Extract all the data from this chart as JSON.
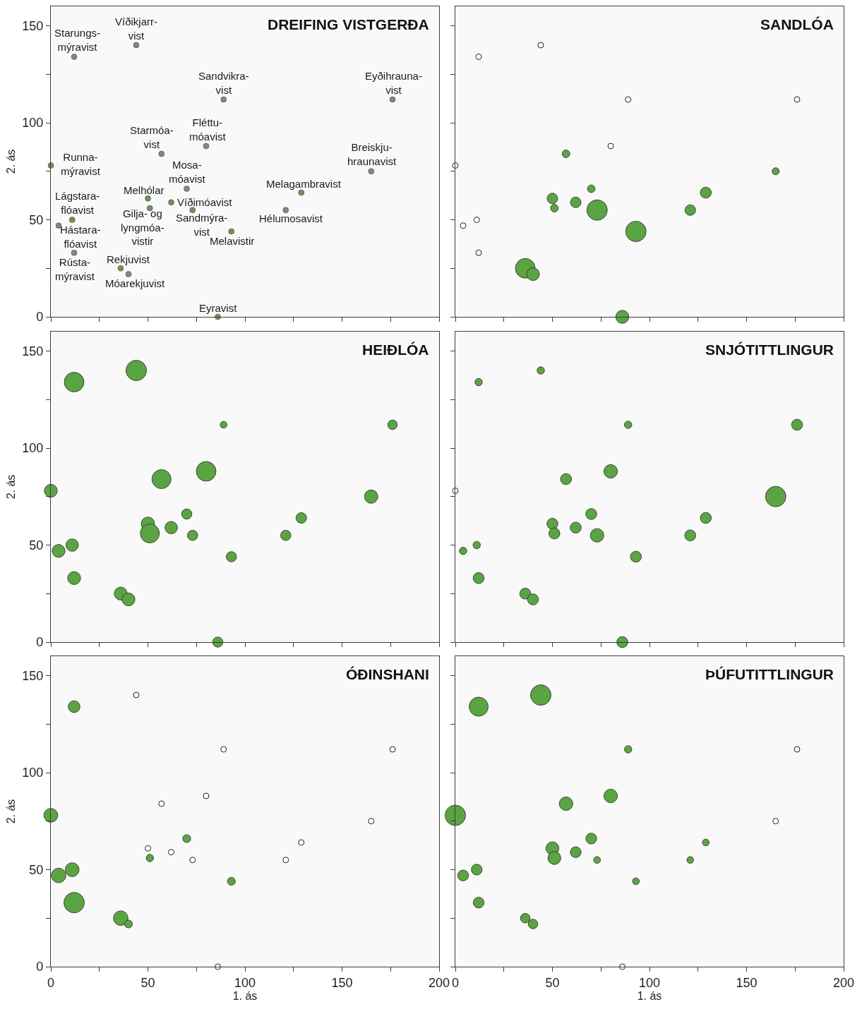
{
  "chart_data": [
    {
      "type": "scatter",
      "title": "DREIFING VISTGERÐA",
      "ylabel": "2. ás",
      "marker": "circle",
      "x": [
        12,
        44,
        89,
        176,
        80,
        57,
        0,
        165,
        70,
        129,
        50,
        62,
        51,
        73,
        121,
        11,
        4,
        93,
        12,
        36,
        40,
        86
      ],
      "values": [
        134,
        140,
        112,
        112,
        88,
        84,
        78,
        75,
        66,
        64,
        61,
        59,
        56,
        55,
        55,
        50,
        47,
        44,
        33,
        25,
        22,
        0
      ],
      "colors": [
        "#858585",
        "#858585",
        "#858585",
        "#858585",
        "#858585",
        "#858585",
        "#71915a",
        "#858585",
        "#858585",
        "#71915a",
        "#71915a",
        "#71915a",
        "#71915a",
        "#71915a",
        "#858585",
        "#71915a",
        "#858585",
        "#71915a",
        "#858585",
        "#71915a",
        "#858585",
        "#71915a"
      ],
      "annotations": [
        {
          "text": "Starungs-\nmýravist",
          "x": 12,
          "y": 134
        },
        {
          "text": "Víðikjarr-\nvist",
          "x": 44,
          "y": 140
        },
        {
          "text": "Sandvikra-\nvist",
          "x": 89,
          "y": 112
        },
        {
          "text": "Eyðihrauna-\nvist",
          "x": 176,
          "y": 112
        },
        {
          "text": "Fléttu-\nmóavist",
          "x": 80,
          "y": 88
        },
        {
          "text": "Starmóa-\nvist",
          "x": 57,
          "y": 84
        },
        {
          "text": "Runna-\nmýravist",
          "x": 0,
          "y": 78
        },
        {
          "text": "Breiskju-\nhraunavist",
          "x": 165,
          "y": 75
        },
        {
          "text": "Mosa-\nmóavist",
          "x": 70,
          "y": 66
        },
        {
          "text": "Melagambravist",
          "x": 129,
          "y": 64
        },
        {
          "text": "Melhólar",
          "x": 50,
          "y": 61
        },
        {
          "text": "Víðimóavist",
          "x": 62,
          "y": 59
        },
        {
          "text": "Gilja- og\nlyngmóa-\nvistir",
          "x": 51,
          "y": 56
        },
        {
          "text": "Sandmýra-\nvist",
          "x": 73,
          "y": 55
        },
        {
          "text": "Hélumosavist",
          "x": 121,
          "y": 55
        },
        {
          "text": "Lágstara-\nflóavist",
          "x": 11,
          "y": 50
        },
        {
          "text": "Hástara-\nflóavist",
          "x": 4,
          "y": 47
        },
        {
          "text": "Melavistir",
          "x": 93,
          "y": 44
        },
        {
          "text": "Rústa-\nmýravist",
          "x": 12,
          "y": 33
        },
        {
          "text": "Rekjuvist",
          "x": 36,
          "y": 25
        },
        {
          "text": "Móarekjuvist",
          "x": 40,
          "y": 22
        },
        {
          "text": "Eyravist",
          "x": 86,
          "y": 0
        }
      ],
      "xlim": [
        0,
        200
      ],
      "ylim": [
        0,
        160
      ],
      "xticks": [
        0,
        {
          "value": 25,
          "label": null
        },
        50,
        {
          "value": 75,
          "label": null
        },
        100,
        {
          "value": 125,
          "label": null
        },
        150,
        {
          "value": 175,
          "label": null
        },
        200
      ],
      "yticks": [
        0,
        {
          "value": 25,
          "label": null
        },
        50,
        {
          "value": 75,
          "label": null
        },
        100,
        {
          "value": 125,
          "label": null
        },
        150
      ],
      "tick_labels": "y"
    },
    {
      "type": "bubble",
      "title": "SANDLÓA",
      "marker": "circle",
      "x": [
        12,
        44,
        89,
        176,
        80,
        57,
        0,
        165,
        70,
        129,
        50,
        62,
        51,
        73,
        121,
        11,
        4,
        93,
        12,
        36,
        40,
        86
      ],
      "series": [
        {
          "type": "bubble",
          "color": "#5ba443",
          "values": [
            null,
            null,
            null,
            null,
            null,
            84,
            null,
            75,
            66,
            64,
            61,
            59,
            56,
            55,
            55,
            null,
            null,
            44,
            null,
            25,
            22,
            0
          ],
          "sizes": [
            null,
            null,
            null,
            null,
            null,
            0.14,
            null,
            0.12,
            0.14,
            0.29,
            0.27,
            0.27,
            0.14,
            1,
            0.27,
            null,
            null,
            1,
            null,
            0.93,
            0.39,
            0.41
          ]
        },
        {
          "type": "scatter",
          "color": "#ffffff",
          "values": [
            134,
            140,
            112,
            112,
            88,
            null,
            78,
            null,
            null,
            null,
            null,
            null,
            null,
            null,
            null,
            50,
            47,
            null,
            33,
            null,
            null,
            null
          ]
        }
      ],
      "xlim": [
        0,
        200
      ],
      "ylim": [
        0,
        160
      ],
      "xticks": [
        0,
        {
          "value": 25,
          "label": null
        },
        50,
        {
          "value": 75,
          "label": null
        },
        100,
        {
          "value": 125,
          "label": null
        },
        150,
        {
          "value": 175,
          "label": null
        },
        200
      ],
      "yticks": [
        0,
        {
          "value": 25,
          "label": null
        },
        50,
        {
          "value": 75,
          "label": null
        },
        100,
        {
          "value": 125,
          "label": null
        },
        150
      ],
      "tick_labels": false
    },
    {
      "type": "bubble",
      "title": "HEIÐLÓA",
      "ylabel": "2. ás",
      "marker": "circle",
      "x": [
        12,
        44,
        89,
        176,
        80,
        57,
        0,
        165,
        70,
        129,
        50,
        62,
        51,
        73,
        121,
        11,
        4,
        93,
        12,
        36,
        40,
        86
      ],
      "series": [
        {
          "type": "bubble",
          "color": "#5ba443",
          "values": [
            134,
            140,
            112,
            112,
            88,
            84,
            78,
            75,
            66,
            64,
            61,
            59,
            56,
            55,
            55,
            50,
            47,
            44,
            33,
            25,
            22,
            0
          ],
          "sizes": [
            0.93,
            1,
            0.11,
            0.22,
            0.93,
            0.87,
            0.4,
            0.43,
            0.25,
            0.27,
            0.43,
            0.37,
            0.87,
            0.25,
            0.25,
            0.37,
            0.4,
            0.25,
            0.4,
            0.4,
            0.4,
            0.25
          ]
        }
      ],
      "xlim": [
        0,
        200
      ],
      "ylim": [
        0,
        160
      ],
      "xticks": [
        0,
        {
          "value": 25,
          "label": null
        },
        50,
        {
          "value": 75,
          "label": null
        },
        100,
        {
          "value": 125,
          "label": null
        },
        150,
        {
          "value": 175,
          "label": null
        },
        200
      ],
      "yticks": [
        0,
        {
          "value": 25,
          "label": null
        },
        50,
        {
          "value": 75,
          "label": null
        },
        100,
        {
          "value": 125,
          "label": null
        },
        150
      ],
      "tick_labels": "y"
    },
    {
      "type": "bubble",
      "title": "SNJÓTITTLINGUR",
      "marker": "circle",
      "x": [
        12,
        44,
        89,
        176,
        80,
        57,
        0,
        165,
        70,
        129,
        50,
        62,
        51,
        73,
        121,
        11,
        4,
        93,
        12,
        36,
        40,
        86
      ],
      "series": [
        {
          "type": "bubble",
          "color": "#5ba443",
          "values": [
            134,
            140,
            112,
            112,
            88,
            84,
            null,
            75,
            66,
            64,
            61,
            59,
            56,
            55,
            55,
            50,
            47,
            44,
            33,
            25,
            22,
            0
          ],
          "sizes": [
            0.13,
            0.13,
            0.13,
            0.29,
            0.44,
            0.29,
            null,
            1,
            0.29,
            0.29,
            0.29,
            0.29,
            0.29,
            0.44,
            0.29,
            0.13,
            0.13,
            0.29,
            0.29,
            0.29,
            0.29,
            0.29
          ]
        },
        {
          "type": "scatter",
          "color": "#ffffff",
          "values": [
            null,
            null,
            null,
            null,
            null,
            null,
            78,
            null,
            null,
            null,
            null,
            null,
            null,
            null,
            null,
            null,
            null,
            null,
            null,
            null,
            null,
            null
          ]
        }
      ],
      "xlim": [
        0,
        200
      ],
      "ylim": [
        0,
        160
      ],
      "xticks": [
        0,
        {
          "value": 25,
          "label": null
        },
        50,
        {
          "value": 75,
          "label": null
        },
        100,
        {
          "value": 125,
          "label": null
        },
        150,
        {
          "value": 175,
          "label": null
        },
        200
      ],
      "yticks": [
        0,
        {
          "value": 25,
          "label": null
        },
        50,
        {
          "value": 75,
          "label": null
        },
        100,
        {
          "value": 125,
          "label": null
        },
        150
      ],
      "tick_labels": false
    },
    {
      "type": "bubble",
      "title": "ÓÐINSHANI",
      "xlabel": "1. ás",
      "ylabel": "2. ás",
      "marker": "circle",
      "x": [
        12,
        44,
        89,
        176,
        80,
        57,
        0,
        165,
        70,
        129,
        50,
        62,
        51,
        73,
        121,
        11,
        4,
        93,
        12,
        36,
        40,
        86
      ],
      "series": [
        {
          "type": "bubble",
          "color": "#5ba443",
          "values": [
            134,
            null,
            null,
            null,
            null,
            null,
            78,
            null,
            66,
            null,
            null,
            null,
            56,
            null,
            null,
            50,
            47,
            44,
            33,
            25,
            22,
            null
          ],
          "sizes": [
            0.33,
            null,
            null,
            null,
            null,
            null,
            0.46,
            null,
            0.15,
            null,
            null,
            null,
            0.13,
            null,
            null,
            0.46,
            0.51,
            0.15,
            1,
            0.51,
            0.15,
            null
          ]
        },
        {
          "type": "scatter",
          "color": "#ffffff",
          "values": [
            null,
            140,
            112,
            112,
            88,
            84,
            null,
            75,
            null,
            64,
            61,
            59,
            null,
            55,
            55,
            null,
            null,
            null,
            null,
            null,
            null,
            0
          ]
        }
      ],
      "xlim": [
        0,
        200
      ],
      "ylim": [
        0,
        160
      ],
      "xticks": [
        0,
        {
          "value": 25,
          "label": null
        },
        50,
        {
          "value": 75,
          "label": null
        },
        100,
        {
          "value": 125,
          "label": null
        },
        150,
        {
          "value": 175,
          "label": null
        },
        200
      ],
      "yticks": [
        0,
        {
          "value": 25,
          "label": null
        },
        50,
        {
          "value": 75,
          "label": null
        },
        100,
        {
          "value": 125,
          "label": null
        },
        150
      ]
    },
    {
      "type": "bubble",
      "title": "ÞÚFUTITTLINGUR",
      "xlabel": "1. ás",
      "marker": "circle",
      "x": [
        12,
        44,
        89,
        176,
        80,
        57,
        0,
        165,
        70,
        129,
        50,
        62,
        51,
        73,
        121,
        11,
        4,
        93,
        12,
        36,
        40,
        86
      ],
      "series": [
        {
          "type": "bubble",
          "color": "#5ba443",
          "values": [
            134,
            140,
            112,
            null,
            88,
            84,
            78,
            null,
            66,
            64,
            61,
            59,
            56,
            55,
            55,
            50,
            47,
            44,
            33,
            25,
            22,
            null
          ],
          "sizes": [
            0.87,
            1,
            0.13,
            null,
            0.44,
            0.44,
            1,
            null,
            0.28,
            0.11,
            0.4,
            0.28,
            0.4,
            0.11,
            0.11,
            0.28,
            0.28,
            0.11,
            0.28,
            0.22,
            0.22,
            null
          ]
        },
        {
          "type": "scatter",
          "color": "#ffffff",
          "values": [
            null,
            null,
            null,
            112,
            null,
            null,
            null,
            75,
            null,
            null,
            null,
            null,
            null,
            null,
            null,
            null,
            null,
            null,
            null,
            null,
            null,
            0
          ]
        }
      ],
      "xlim": [
        0,
        200
      ],
      "ylim": [
        0,
        160
      ],
      "xticks": [
        0,
        {
          "value": 25,
          "label": null
        },
        50,
        {
          "value": 75,
          "label": null
        },
        100,
        {
          "value": 125,
          "label": null
        },
        150,
        {
          "value": 175,
          "label": null
        },
        200
      ],
      "yticks": [
        0,
        {
          "value": 25,
          "label": null
        },
        50,
        {
          "value": 75,
          "label": null
        },
        100,
        {
          "value": 125,
          "label": null
        },
        150
      ],
      "tick_labels": "x"
    }
  ]
}
